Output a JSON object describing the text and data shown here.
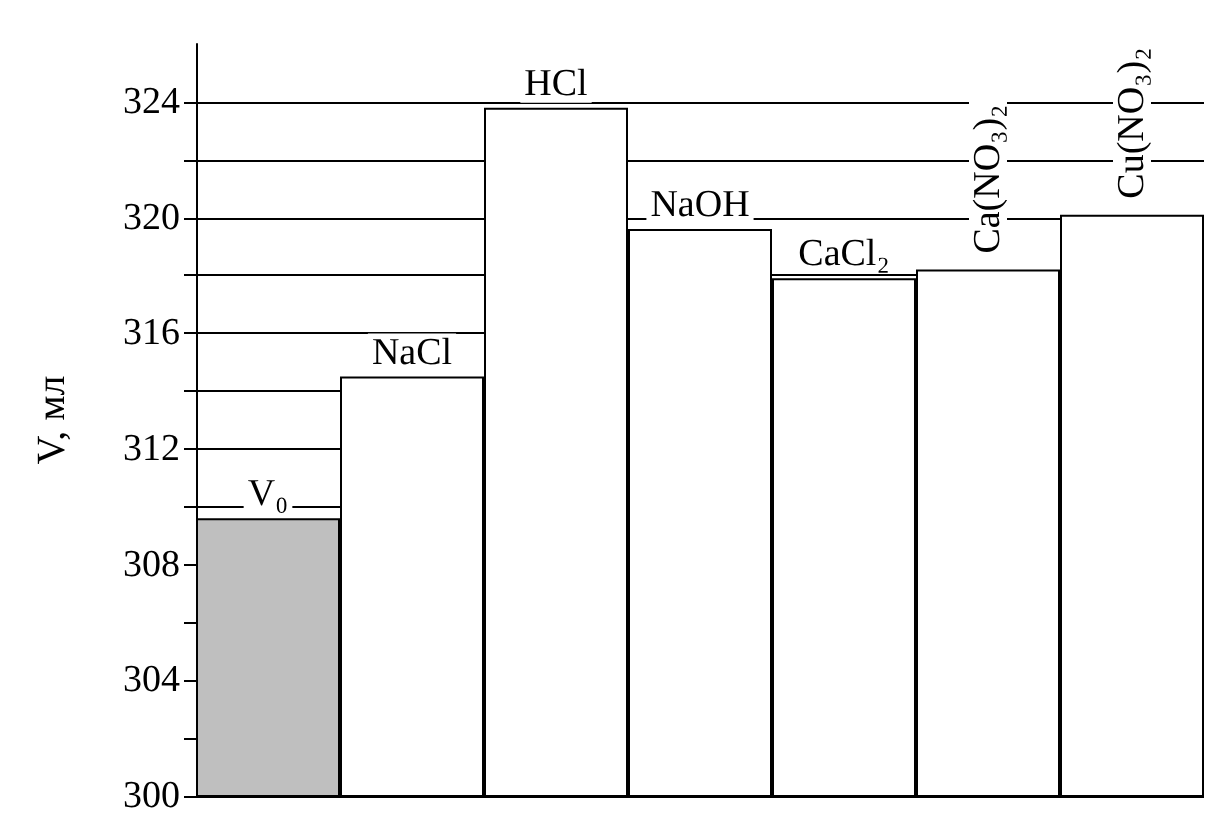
{
  "chart_data": {
    "type": "bar",
    "ylabel": "V, мл",
    "categories": [
      "V₀",
      "NaCl",
      "HCl",
      "NaOH",
      "CaCl₂",
      "Ca(NO₃)₂",
      "Cu(NO₃)₂"
    ],
    "values": [
      309.6,
      314.5,
      323.8,
      319.6,
      317.9,
      318.2,
      320.1
    ],
    "colors": [
      "#bfbfbf",
      "#ffffff",
      "#ffffff",
      "#ffffff",
      "#ffffff",
      "#ffffff",
      "#ffffff"
    ],
    "ylim": [
      300,
      326
    ],
    "yticks": [
      300,
      {
        "value": 302,
        "label": null
      },
      304,
      {
        "value": 306,
        "label": null
      },
      308,
      {
        "value": 310,
        "label": null
      },
      312,
      {
        "value": 314,
        "label": null
      },
      316,
      {
        "value": 318,
        "label": null
      },
      320,
      {
        "value": 322,
        "label": null
      },
      324
    ],
    "grid": "y",
    "tick_labels": "y"
  }
}
